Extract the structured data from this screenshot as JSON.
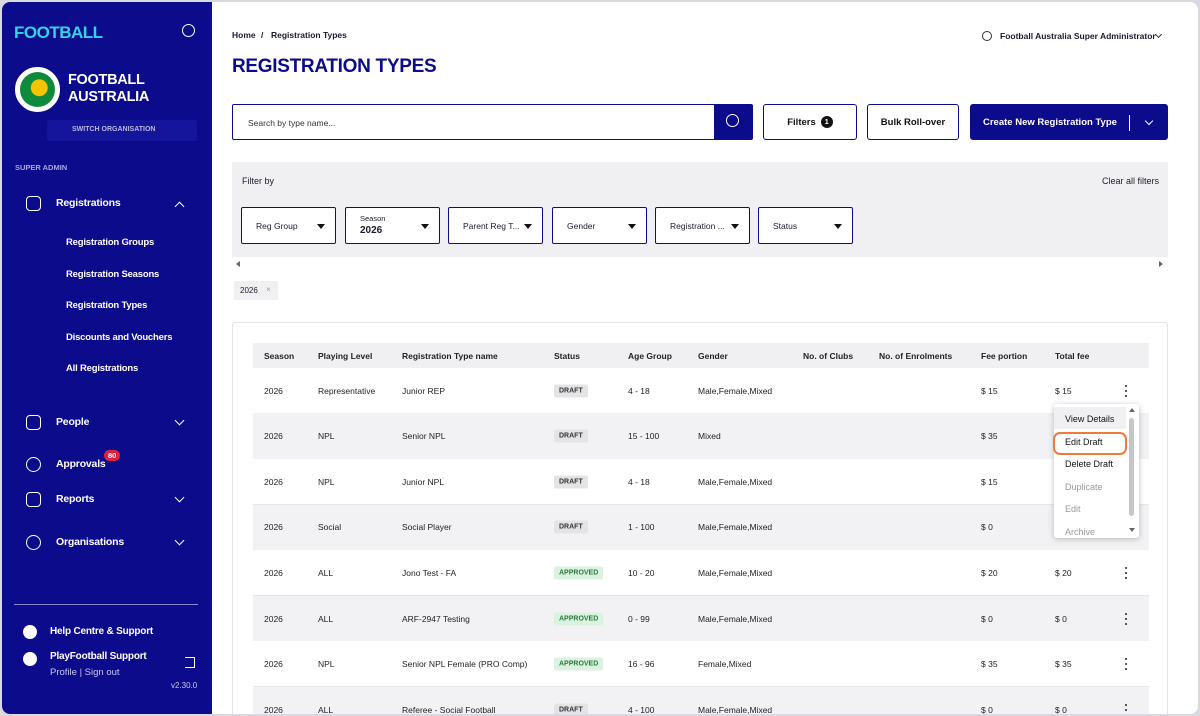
{
  "sidebar": {
    "brand": "FOOTBALL",
    "org_name": [
      "FOOTBALL",
      "AUSTRALIA"
    ],
    "switch_org": "SWITCH ORGANISATION",
    "section": "SUPER ADMIN",
    "nav": [
      {
        "label": "Registrations",
        "children": [
          "Registration Groups",
          "Registration Seasons",
          "Registration Types",
          "Discounts and Vouchers",
          "All Registrations"
        ]
      },
      {
        "label": "People"
      },
      {
        "label": "Approvals",
        "badge": "80"
      },
      {
        "label": "Reports"
      },
      {
        "label": "Organisations"
      }
    ],
    "help": "Help Centre & Support",
    "user_name": "PlayFootball Support",
    "user_links": "Profile | Sign out",
    "version": "v2.30.0"
  },
  "header": {
    "breadcrumb": [
      "Home",
      "Registration Types"
    ],
    "title": "REGISTRATION TYPES",
    "user": "Football Australia Super Administrator"
  },
  "toolbar": {
    "search_placeholder": "Search by type name...",
    "filters": "Filters",
    "filters_count": "1",
    "bulk": "Bulk Roll-over",
    "create": "Create New Registration Type"
  },
  "filter_panel": {
    "title": "Filter by",
    "clear": "Clear all filters",
    "dropdowns": [
      {
        "label": "Reg Group"
      },
      {
        "label": "Season",
        "value": "2026"
      },
      {
        "label": "Parent Reg T..."
      },
      {
        "label": "Gender"
      },
      {
        "label": "Registration ..."
      },
      {
        "label": "Status"
      }
    ],
    "chips": [
      "2026"
    ]
  },
  "table": {
    "columns": [
      "Season",
      "Playing Level",
      "Registration Type name",
      "Status",
      "Age Group",
      "Gender",
      "No. of Clubs",
      "No. of Enrolments",
      "Fee portion",
      "Total fee"
    ],
    "rows": [
      [
        "2026",
        "Representative",
        "Junior REP",
        "DRAFT",
        "4 - 18",
        "Male,Female,Mixed",
        null,
        null,
        "$ 15",
        "$ 15"
      ],
      [
        "2026",
        "NPL",
        "Senior NPL",
        "DRAFT",
        "15 - 100",
        "Mixed",
        null,
        null,
        "$ 35",
        null
      ],
      [
        "2026",
        "NPL",
        "Junior NPL",
        "DRAFT",
        "4 - 18",
        "Male,Female,Mixed",
        null,
        null,
        "$ 15",
        null
      ],
      [
        "2026",
        "Social",
        "Social Player",
        "DRAFT",
        "1 - 100",
        "Male,Female,Mixed",
        null,
        null,
        "$ 0",
        null
      ],
      [
        "2026",
        "ALL",
        "Jono Test - FA",
        "APPROVED",
        "10 - 20",
        "Male,Female,Mixed",
        null,
        null,
        "$ 20",
        "$ 20"
      ],
      [
        "2026",
        "ALL",
        "ARF-2947 Testing",
        "APPROVED",
        "0 - 99",
        "Male,Female,Mixed",
        null,
        null,
        "$ 0",
        "$ 0"
      ],
      [
        "2026",
        "NPL",
        "Senior NPL Female (PRO Comp)",
        "APPROVED",
        "16 - 96",
        "Female,Mixed",
        null,
        null,
        "$ 35",
        "$ 35"
      ],
      [
        "2026",
        "ALL",
        "Referee - Social Football",
        "DRAFT",
        "4 - 100",
        "Male,Female,Mixed",
        null,
        null,
        "$ 0",
        "$ 0"
      ]
    ]
  },
  "row_menu": {
    "items": [
      "View Details",
      "Edit Draft",
      "Delete Draft",
      "Duplicate",
      "Edit",
      "Archive"
    ],
    "disabled": [
      false,
      false,
      false,
      true,
      true,
      true
    ],
    "highlighted": [
      false,
      true,
      false,
      false,
      false,
      false
    ]
  }
}
